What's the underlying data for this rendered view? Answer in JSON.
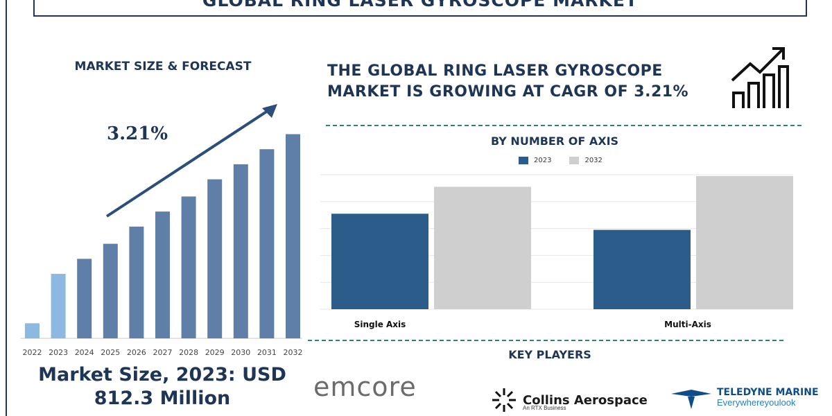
{
  "title": "GLOBAL RING LASER GYROSCOPE MARKET",
  "left_panel": {
    "heading": "MARKET SIZE & FORECAST",
    "cagr_label": "3.21%",
    "market_size_line1": "Market Size, 2023: USD",
    "market_size_line2": "812.3 Million"
  },
  "headline": {
    "line1": "THE GLOBAL RING LASER GYROSCOPE",
    "line2": "MARKET IS GROWING AT CAGR OF 3.21%"
  },
  "key_players": {
    "title": "KEY PLAYERS",
    "emcore": "emcore",
    "collins_name": "Collins Aerospace",
    "collins_sub": "An RTX Business",
    "teledyne_name": "TELEDYNE MARINE",
    "teledyne_tag": "Everywhereyoulook"
  },
  "chart_data": [
    {
      "type": "bar",
      "title": "MARKET SIZE & FORECAST",
      "categories": [
        "2022",
        "2023",
        "2024",
        "2025",
        "2026",
        "2027",
        "2028",
        "2029",
        "2030",
        "2031",
        "2032"
      ],
      "values": [
        0.07,
        0.3,
        0.37,
        0.44,
        0.52,
        0.59,
        0.66,
        0.74,
        0.81,
        0.88,
        0.95
      ],
      "value_note": "relative heights only; no value axis shown",
      "colors": {
        "highlight": "#8db8e0",
        "default": "#5f7fa8"
      },
      "highlight_categories": [
        "2022",
        "2023"
      ],
      "annotation": "3.21%",
      "grid": false,
      "legend": "none"
    },
    {
      "type": "bar",
      "title": "BY NUMBER OF AXIS",
      "categories": [
        "Single Axis",
        "Multi-Axis"
      ],
      "series": [
        {
          "name": "2023",
          "values": [
            0.71,
            0.59
          ],
          "color": "#2b5c8a"
        },
        {
          "name": "2032",
          "values": [
            0.91,
            0.99
          ],
          "color": "#cfcfcf"
        }
      ],
      "ylim": [
        0,
        1
      ],
      "value_note": "relative heights only; no value axis shown",
      "grid": true,
      "legend": "top-center"
    }
  ]
}
